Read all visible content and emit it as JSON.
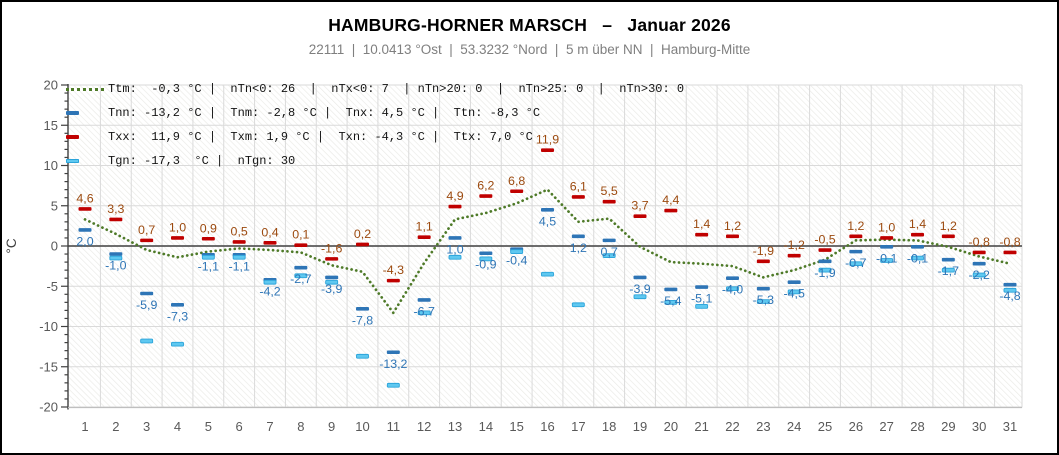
{
  "header": {
    "title": "HAMBURG-HORNER MARSCH   –   Januar 2026",
    "subtitle": "22111  |  10.0413 °Ost  |  53.3232 °Nord  |  5 m über NN  |  Hamburg-Mitte"
  },
  "legend": {
    "rows": [
      {
        "key": "ttm-dotted-line",
        "color": "#4E7A28",
        "text": "Ttm:  -0,3 °C |  nTn<0: 26  |  nTx<0: 7  | nTn>20: 0  |  nTn>25: 0  |  nTn>30: 0"
      },
      {
        "key": "tnn-dash",
        "color": "#2E75B6",
        "text": "Tnn: -13,2 °C |  Tnm: -2,8 °C |  Tnx: 4,5 °C |  Ttn: -8,3 °C"
      },
      {
        "key": "txx-dash",
        "color": "#C00000",
        "text": "Txx:  11,9 °C |  Txm: 1,9 °C |  Txn: -4,3 °C |  Ttx: 7,0 °C"
      },
      {
        "key": "tgn-dash",
        "color": "#5FC8F0",
        "text": "Tgn: -17,3  °C |  nTgn: 30"
      }
    ]
  },
  "chart_data": {
    "type": "scatter",
    "subtype": "daily-temperature-dashes-with-mean-line",
    "x": [
      1,
      2,
      3,
      4,
      5,
      6,
      7,
      8,
      9,
      10,
      11,
      12,
      13,
      14,
      15,
      16,
      17,
      18,
      19,
      20,
      21,
      22,
      23,
      24,
      25,
      26,
      27,
      28,
      29,
      30,
      31
    ],
    "xlabel": "",
    "ylabel": "°C",
    "ylim": [
      -20,
      20
    ],
    "y_ticks": [
      20,
      15,
      10,
      5,
      0,
      -5,
      -10,
      -15,
      -20
    ],
    "y_tick_minor_step": 1,
    "grid": true,
    "series": [
      {
        "name": "Txx",
        "style": "dash",
        "color": "#C00000",
        "label_color": "#9c4a0f",
        "label_side": "above",
        "values": [
          4.6,
          3.3,
          0.7,
          1.0,
          0.9,
          0.5,
          0.4,
          0.1,
          -1.6,
          0.2,
          -4.3,
          1.1,
          4.9,
          6.2,
          6.8,
          11.9,
          6.1,
          5.5,
          3.7,
          4.4,
          1.4,
          1.2,
          -1.9,
          -1.2,
          -0.5,
          1.2,
          1.0,
          1.4,
          1.2,
          -0.8,
          -0.8
        ],
        "labels": [
          "4,6",
          "3,3",
          "0,7",
          "1,0",
          "0,9",
          "0,5",
          "0,4",
          "0,1",
          "-1,6",
          "0,2",
          "-4,3",
          "1,1",
          "4,9",
          "6,2",
          "6,8",
          "11,9",
          "6,1",
          "5,5",
          "3,7",
          "4,4",
          "1,4",
          "1,2",
          "-1,9",
          "-1,2",
          "-0,5",
          "1,2",
          "1,0",
          "1,4",
          "1,2",
          "-0,8",
          "-0,8"
        ]
      },
      {
        "name": "Tnn",
        "style": "dash",
        "color": "#2E75B6",
        "label_color": "#2e75b6",
        "label_side": "below",
        "values": [
          2.0,
          -1.0,
          -5.9,
          -7.3,
          -1.1,
          -1.1,
          -4.2,
          -2.7,
          -3.9,
          -7.8,
          -13.2,
          -6.7,
          1.0,
          -0.9,
          -0.4,
          4.5,
          1.2,
          0.7,
          -3.9,
          -5.4,
          -5.1,
          -4.0,
          -5.3,
          -4.5,
          -1.9,
          -0.7,
          -0.1,
          -0.1,
          -1.7,
          -2.2,
          -4.8
        ],
        "labels": [
          "2,0",
          "-1,0",
          "-5,9",
          "-7,3",
          "-1,1",
          "-1,1",
          "-4,2",
          "-2,7",
          "-3,9",
          "-7,8",
          "-13,2",
          "-6,7",
          "1,0",
          "-0,9",
          "-0,4",
          "4,5",
          "1,2",
          "0,7",
          "-3,9",
          "-5,4",
          "-5,1",
          "-4,0",
          "-5,3",
          "-4,5",
          "-1,9",
          "-0,7",
          "-0,1",
          "-0,1",
          "-1,7",
          "-2,2",
          "-4,8"
        ]
      },
      {
        "name": "Tgn",
        "style": "dash",
        "color": "#5FC8F0",
        "stroke": "#2BA4DA",
        "label_side": "none",
        "values": [
          null,
          -1.5,
          -11.8,
          -12.2,
          -1.4,
          -1.4,
          -4.5,
          -3.7,
          -4.5,
          -13.7,
          -17.3,
          -8.3,
          -1.4,
          -1.6,
          -0.7,
          -3.5,
          -7.3,
          -1.2,
          -6.3,
          -7.0,
          -7.5,
          -5.3,
          -6.9,
          -5.7,
          -3.0,
          -2.2,
          -1.8,
          -1.5,
          -3.0,
          -3.6,
          -5.5
        ],
        "labels": []
      },
      {
        "name": "Ttm",
        "style": "dotted-line",
        "color": "#4E7A28",
        "label_side": "none",
        "values": [
          3.3,
          1.5,
          -0.5,
          -1.4,
          -0.7,
          -0.3,
          -0.5,
          -0.8,
          -2.4,
          -3.2,
          -8.3,
          -2.1,
          3.3,
          4.1,
          5.3,
          7.0,
          3.0,
          3.4,
          -0.1,
          -2.0,
          -2.2,
          -2.5,
          -3.9,
          -3.0,
          -1.7,
          0.7,
          0.8,
          0.7,
          -0.1,
          -1.3,
          -2.2
        ],
        "labels": []
      }
    ]
  }
}
